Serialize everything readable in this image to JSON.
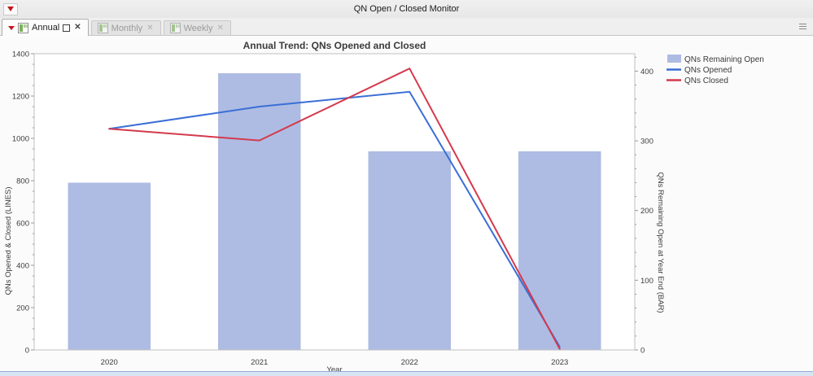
{
  "window": {
    "title": "QN Open / Closed Monitor"
  },
  "icons": {
    "close_glyph": "✕"
  },
  "tabs": {
    "items": [
      {
        "label": "Annual",
        "active": true
      },
      {
        "label": "Monthly",
        "active": false
      },
      {
        "label": "Weekly",
        "active": false
      }
    ]
  },
  "colors": {
    "bar_fill": "#aebce3",
    "opened_line": "#3a6fd6",
    "closed_line": "#d5394c",
    "plot_frame": "#c2c2c2",
    "tick": "#9a9a9a",
    "text": "#3b3b3b"
  },
  "chart_data": {
    "type": "combo-bar-line",
    "title": "Annual Trend:  QNs Opened and Closed",
    "xlabel": "Year",
    "categories": [
      "2020",
      "2021",
      "2022",
      "2023"
    ],
    "bar_series": {
      "name": "QNs Remaining Open",
      "axis": "right",
      "values": [
        240,
        397,
        285,
        285
      ],
      "color": "#aebce3"
    },
    "line_series": [
      {
        "name": "QNs Opened",
        "axis": "left",
        "values": [
          1045,
          1150,
          1220,
          15
        ],
        "color": "#3a6fd6"
      },
      {
        "name": "QNs Closed",
        "axis": "left",
        "values": [
          1045,
          990,
          1330,
          5
        ],
        "color": "#d5394c"
      }
    ],
    "left_axis": {
      "label": "QNs Opened & Closed (LINES)",
      "min": 0,
      "max": 1400,
      "major": 200,
      "minor": 50
    },
    "right_axis": {
      "label": "QNs Remaining Open at Year End (BAR)",
      "min": 0,
      "max": 425,
      "major": 100,
      "minor": 20,
      "label_max": 400
    },
    "legend_position": "right-top",
    "grid": false
  }
}
